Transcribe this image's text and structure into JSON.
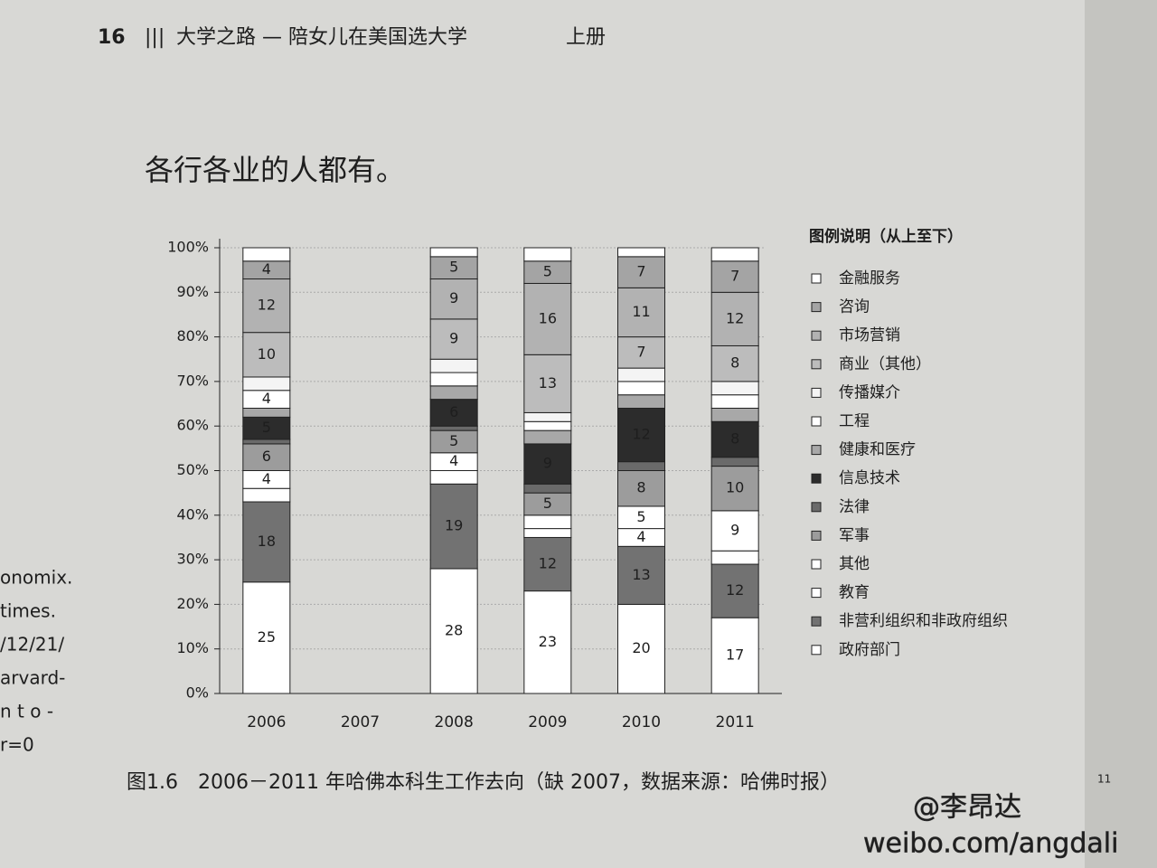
{
  "header": {
    "page": "16",
    "book": "大学之路 — 陪女儿在美国选大学",
    "volume": "上册"
  },
  "heading": "各行各业的人都有。",
  "caption": "图1.6　2006－2011 年哈佛本科生工作去向（缺 2007，数据来源：哈佛时报）",
  "footnote_mark": "11",
  "margin_notes": [
    "onomix.",
    "times.",
    "/12/21/",
    "arvard-",
    "n t o -",
    "r=0"
  ],
  "watermark": [
    "@李昂达",
    "weibo.com/angdali"
  ],
  "chart_data": {
    "type": "bar",
    "stacked": true,
    "legend_title": "图例说明（从上至下）",
    "categories": [
      "2006",
      "2007",
      "2008",
      "2009",
      "2010",
      "2011"
    ],
    "ylim": [
      0,
      100
    ],
    "yticks": [
      {
        "value": 0,
        "label": "0%"
      },
      {
        "value": 10,
        "label": "10%"
      },
      {
        "value": 20,
        "label": "20%"
      },
      {
        "value": 30,
        "label": "30%"
      },
      {
        "value": 40,
        "label": "40%"
      },
      {
        "value": 50,
        "label": "50%"
      },
      {
        "value": 60,
        "label": "60%"
      },
      {
        "value": 70,
        "label": "70%"
      },
      {
        "value": 80,
        "label": "80%"
      },
      {
        "value": 90,
        "label": "90%"
      },
      {
        "value": 100,
        "label": "100%"
      }
    ],
    "grid": true,
    "series": [
      {
        "name": "金融服务",
        "color": "#ffffff",
        "values": [
          3,
          null,
          2,
          3,
          2,
          3
        ]
      },
      {
        "name": "咨询",
        "color": "#a4a4a4",
        "values": [
          4,
          null,
          5,
          5,
          7,
          7
        ]
      },
      {
        "name": "市场营销",
        "color": "#b2b2b2",
        "values": [
          12,
          null,
          9,
          16,
          11,
          12
        ]
      },
      {
        "name": "商业（其他）",
        "color": "#bcbcbc",
        "values": [
          10,
          null,
          9,
          13,
          7,
          8
        ]
      },
      {
        "name": "传播媒介",
        "color": "#f4f4f4",
        "values": [
          3,
          null,
          3,
          2,
          3,
          3
        ]
      },
      {
        "name": "工程",
        "color": "#ffffff",
        "values": [
          4,
          null,
          3,
          2,
          3,
          3
        ]
      },
      {
        "name": "健康和医疗",
        "color": "#a8a8a8",
        "values": [
          2,
          null,
          3,
          3,
          3,
          3
        ]
      },
      {
        "name": "信息技术",
        "color": "#2c2c2c",
        "values": [
          5,
          null,
          6,
          9,
          12,
          8
        ]
      },
      {
        "name": "法律",
        "color": "#6a6a6a",
        "values": [
          1,
          null,
          1,
          2,
          2,
          2
        ]
      },
      {
        "name": "军事",
        "color": "#9c9c9c",
        "values": [
          6,
          null,
          5,
          5,
          8,
          10
        ]
      },
      {
        "name": "其他",
        "color": "#ffffff",
        "values": [
          4,
          null,
          4,
          3,
          5,
          9
        ]
      },
      {
        "name": "教育",
        "color": "#ffffff",
        "values": [
          3,
          null,
          3,
          2,
          4,
          3
        ]
      },
      {
        "name": "非营利组织和非政府组织",
        "color": "#727272",
        "values": [
          18,
          null,
          19,
          12,
          13,
          12
        ]
      },
      {
        "name": "政府部门",
        "color": "#ffffff",
        "values": [
          25,
          null,
          28,
          23,
          20,
          17
        ]
      }
    ]
  }
}
